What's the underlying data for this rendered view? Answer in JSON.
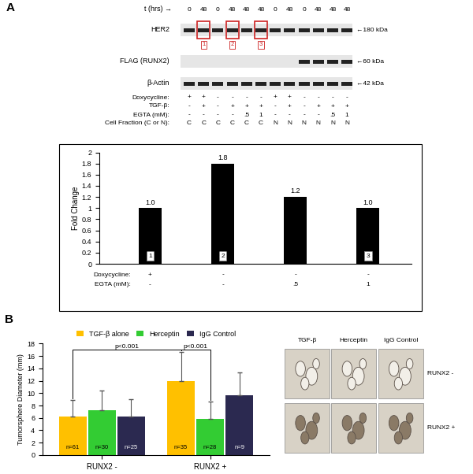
{
  "panel_labels": [
    "A",
    "B"
  ],
  "blot": {
    "time_label": "t (hrs) →",
    "times": [
      0,
      48,
      0,
      48,
      48,
      48,
      0,
      48,
      0,
      48,
      48,
      48
    ],
    "rows": [
      {
        "label": "HER2",
        "size": "←180 kDa",
        "bands": [
          true,
          true,
          true,
          true,
          true,
          true,
          true,
          true,
          true,
          true,
          true,
          true
        ]
      },
      {
        "label": "FLAG (RUNX2)",
        "size": "←60 kDa",
        "bands": [
          false,
          false,
          false,
          false,
          false,
          false,
          false,
          false,
          true,
          true,
          true,
          true
        ]
      },
      {
        "label": "β-Actin",
        "size": "←42 kDa",
        "bands": [
          true,
          true,
          true,
          true,
          true,
          true,
          true,
          true,
          true,
          true,
          true,
          true
        ]
      }
    ],
    "boxes": [
      {
        "lane": 1,
        "label": "1"
      },
      {
        "lane": 3,
        "label": "2"
      },
      {
        "lane": 5,
        "label": "3"
      }
    ],
    "conditions": [
      {
        "label": "Doxycycline:",
        "values": [
          "+",
          "+",
          "-",
          "-",
          "-",
          "-",
          "+",
          "+",
          "-",
          "-",
          "-",
          "-"
        ]
      },
      {
        "label": "TGF-β:",
        "values": [
          "-",
          "+",
          "-",
          "+",
          "+",
          "+",
          "-",
          "+",
          "-",
          "+",
          "+",
          "+"
        ]
      },
      {
        "label": "EGTA (mM):",
        "values": [
          "-",
          "-",
          "-",
          "-",
          ".5",
          "1",
          "-",
          "-",
          "-",
          "-",
          ".5",
          "1"
        ]
      },
      {
        "label": "Cell Fraction (C or N):",
        "values": [
          "C",
          "C",
          "C",
          "C",
          "C",
          "C",
          "N",
          "N",
          "N",
          "N",
          "N",
          "N"
        ]
      }
    ]
  },
  "chart_data": [
    {
      "type": "bar",
      "categories": [
        "1",
        "2",
        null,
        "3"
      ],
      "values": [
        1.0,
        1.8,
        1.2,
        1.0
      ],
      "value_labels": [
        "1.0",
        "1.8",
        "1.2",
        "1.0"
      ],
      "data_labels": true,
      "color": "#000000",
      "y_label": "Fold Change",
      "ylim": [
        0,
        2
      ],
      "yticks": [
        0,
        0.2,
        0.4,
        0.6,
        0.8,
        1,
        1.2,
        1.4,
        1.6,
        1.8,
        2
      ],
      "conditions": [
        {
          "label": "Doxycycline:",
          "values": [
            "+",
            "-",
            "-",
            "-"
          ]
        },
        {
          "label": "EGTA (mM):",
          "values": [
            "-",
            "-",
            ".5",
            "1"
          ]
        }
      ]
    },
    {
      "type": "bar",
      "categories": [
        "RUNX2 -",
        "RUNX2 +"
      ],
      "series": [
        {
          "name": "TGF-β alone",
          "color": "#FFC000",
          "values": [
            6.2,
            11.9
          ],
          "errors": [
            2.7,
            4.7
          ],
          "n_labels": [
            "n=61",
            "n=35"
          ]
        },
        {
          "name": "Herceptin",
          "color": "#33CC33",
          "values": [
            7.2,
            5.8
          ],
          "errors": [
            3.2,
            2.8
          ],
          "n_labels": [
            "n=30",
            "n=28"
          ]
        },
        {
          "name": "IgG Control",
          "color": "#2B2950",
          "values": [
            6.2,
            9.6
          ],
          "errors": [
            2.8,
            3.7
          ],
          "n_labels": [
            "n=25",
            "n=9"
          ]
        }
      ],
      "y_label": "Tumorsphere Diameter (mm)",
      "ylim": [
        0,
        18
      ],
      "yticks": [
        0,
        2,
        4,
        6,
        8,
        10,
        12,
        14,
        16,
        18
      ],
      "legend": "top",
      "annotations": [
        {
          "text": "p<0.001",
          "between": [
            [
              "RUNX2 -",
              "TGF-β alone"
            ],
            [
              "RUNX2 +",
              "TGF-β alone"
            ]
          ]
        },
        {
          "text": "p<0.001",
          "between": [
            [
              "RUNX2 +",
              "TGF-β alone"
            ],
            [
              "RUNX2 +",
              "Herceptin"
            ]
          ]
        }
      ]
    }
  ],
  "images": {
    "columns": [
      "TGF-β",
      "Herceptin",
      "IgG Control"
    ],
    "rows": [
      "RUNX2 -",
      "RUNX2 +"
    ]
  }
}
